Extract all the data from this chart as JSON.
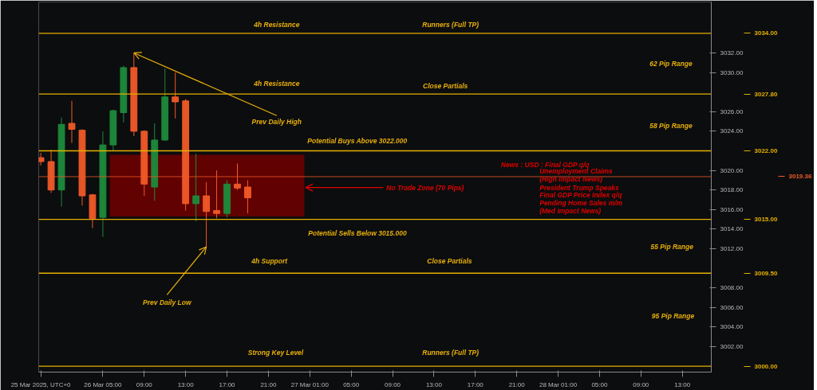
{
  "chart_data": {
    "type": "candlestick",
    "x": [
      "2025-03-25T23:00",
      "2025-03-26T00:00",
      "2025-03-26T01:00",
      "2025-03-26T02:00",
      "2025-03-26T03:00",
      "2025-03-26T04:00",
      "2025-03-26T05:00",
      "2025-03-26T06:00",
      "2025-03-26T07:00",
      "2025-03-26T08:00",
      "2025-03-26T09:00",
      "2025-03-26T10:00",
      "2025-03-26T11:00",
      "2025-03-26T12:00",
      "2025-03-26T13:00",
      "2025-03-26T14:00",
      "2025-03-26T15:00",
      "2025-03-26T16:00",
      "2025-03-26T17:00",
      "2025-03-26T18:00",
      "2025-03-26T19:00"
    ],
    "ohlc": [
      [
        3021.3,
        3021.8,
        3020.5,
        3020.9
      ],
      [
        3020.9,
        3022.1,
        3017.7,
        3018.0
      ],
      [
        3018.0,
        3025.4,
        3016.3,
        3024.7
      ],
      [
        3024.8,
        3027.1,
        3022.8,
        3024.2
      ],
      [
        3024.1,
        3024.2,
        3016.4,
        3017.4
      ],
      [
        3017.5,
        3017.6,
        3014.1,
        3015.1
      ],
      [
        3015.2,
        3024.0,
        3013.2,
        3022.6
      ],
      [
        3022.6,
        3026.2,
        3022.0,
        3026.1
      ],
      [
        3025.9,
        3030.7,
        3024.9,
        3030.5
      ],
      [
        3030.5,
        3032.0,
        3023.5,
        3024.0
      ],
      [
        3024.0,
        3024.1,
        3017.4,
        3018.6
      ],
      [
        3018.3,
        3024.8,
        3016.9,
        3023.1
      ],
      [
        3023.1,
        3030.4,
        3023.0,
        3027.5
      ],
      [
        3027.5,
        3030.0,
        3025.3,
        3027.0
      ],
      [
        3027.1,
        3027.3,
        3015.9,
        3016.6
      ],
      [
        3016.6,
        3021.7,
        3014.8,
        3017.4
      ],
      [
        3017.4,
        3018.8,
        3012.2,
        3015.8
      ],
      [
        3015.9,
        3020.0,
        3015.1,
        3015.6
      ],
      [
        3015.6,
        3019.0,
        3015.2,
        3018.6
      ],
      [
        3018.6,
        3020.7,
        3018.0,
        3018.2
      ],
      [
        3018.3,
        3019.0,
        3015.6,
        3017.2
      ]
    ],
    "colors": [
      "#f05a28",
      "#f05a28",
      "#1e8a3c",
      "#f05a28",
      "#f05a28",
      "#f05a28",
      "#1e8a3c",
      "#1e8a3c",
      "#1e8a3c",
      "#f05a28",
      "#f05a28",
      "#1e8a3c",
      "#1e8a3c",
      "#f05a28",
      "#f05a28",
      "#1e8a3c",
      "#f05a28",
      "#f05a28",
      "#1e8a3c",
      "#f05a28",
      "#f05a28"
    ],
    "xlim": [
      "2025-03-25T22:48",
      "2025-03-28T15:48"
    ],
    "xticks": [
      {
        "value": "2025-03-25T23:00",
        "label": "25 Mar 2025, UTC+0"
      },
      {
        "value": "2025-03-26T05:00",
        "label": "26 Mar 05:00"
      },
      {
        "value": "2025-03-26T09:00",
        "label": "09:00"
      },
      {
        "value": "2025-03-26T13:00",
        "label": "13:00"
      },
      {
        "value": "2025-03-26T17:00",
        "label": "17:00"
      },
      {
        "value": "2025-03-26T21:00",
        "label": "21:00"
      },
      {
        "value": "2025-03-27T01:00",
        "label": "27 Mar 01:00"
      },
      {
        "value": "2025-03-27T05:00",
        "label": "05:00"
      },
      {
        "value": "2025-03-27T09:00",
        "label": "09:00"
      },
      {
        "value": "2025-03-27T13:00",
        "label": "13:00"
      },
      {
        "value": "2025-03-27T17:00",
        "label": "17:00"
      },
      {
        "value": "2025-03-27T21:00",
        "label": "21:00"
      },
      {
        "value": "2025-03-28T01:00",
        "label": "28 Mar 01:00"
      },
      {
        "value": "2025-03-28T05:00",
        "label": "05:00"
      },
      {
        "value": "2025-03-28T09:00",
        "label": "09:00"
      },
      {
        "value": "2025-03-28T13:00",
        "label": "13:00"
      }
    ],
    "ylim": [
      2999.4,
      3037.2
    ],
    "yticks": [
      {
        "value": 3002,
        "label": "3002.00"
      },
      {
        "value": 3004,
        "label": "3004.00"
      },
      {
        "value": 3006,
        "label": "3006.00"
      },
      {
        "value": 3008,
        "label": "3008.00"
      },
      {
        "value": 3012,
        "label": "3012.00"
      },
      {
        "value": 3014,
        "label": "3014.00"
      },
      {
        "value": 3016,
        "label": "3016.00"
      },
      {
        "value": 3018,
        "label": "3018.00"
      },
      {
        "value": 3020,
        "label": "3020.00"
      },
      {
        "value": 3024,
        "label": "3024.00"
      },
      {
        "value": 3026,
        "label": "3026.00"
      },
      {
        "value": 3030,
        "label": "3030.00"
      },
      {
        "value": 3032,
        "label": "3032.00"
      }
    ],
    "grid": false,
    "ref_lines": [
      {
        "axis": "y",
        "value": 3034.0,
        "label": "3034.00",
        "color": "#e6b000"
      },
      {
        "axis": "y",
        "value": 3027.8,
        "label": "3027.80",
        "color": "#e6b000"
      },
      {
        "axis": "y",
        "value": 3022.0,
        "label": "3022.00",
        "color": "#e6b000"
      },
      {
        "axis": "y",
        "value": 3015.0,
        "label": "3015.00",
        "color": "#e6b000"
      },
      {
        "axis": "y",
        "value": 3009.5,
        "label": "3009.50",
        "color": "#e6b000"
      },
      {
        "axis": "y",
        "value": 3000.0,
        "label": "3000.00",
        "color": "#e6b000"
      },
      {
        "axis": "y",
        "value": 3019.36,
        "label": "3019.36",
        "color": "#f05a28"
      }
    ],
    "bands": [
      {
        "axis": "y",
        "from": 3015.3,
        "to": 3021.6,
        "color": "#6a0000"
      }
    ],
    "annotations": [
      "4h Resistance",
      "Runners (Full TP)",
      "62 Pip Range",
      "4h Resistance",
      "Close Partials",
      {
        "text": "Prev Daily High",
        "x": "2025-03-26T08:00",
        "y": 3032.0
      },
      "58 Pip Range",
      "Potential Buys Above 3022.000",
      "News : USD : Final GDP q/q",
      "Unemployment Claims",
      "(High Impact News)",
      "President Trump Speaks",
      "Final GDP Price Index q/q",
      "Pending Home Sales m/m",
      "(Med Impact News)",
      {
        "text": "No Trade Zone (70 Pips)",
        "x": "2025-03-27T00:36",
        "y": 3018.25
      },
      "Potential Sells Below 3015.000",
      "55 Pip Range",
      "4h Support",
      "Close Partials",
      {
        "text": "Prev Daily Low",
        "x": "2025-03-26T15:00",
        "y": 3012.2
      },
      "95 Pip Range",
      "Strong Key Level",
      "Runners (Full TP)"
    ]
  }
}
